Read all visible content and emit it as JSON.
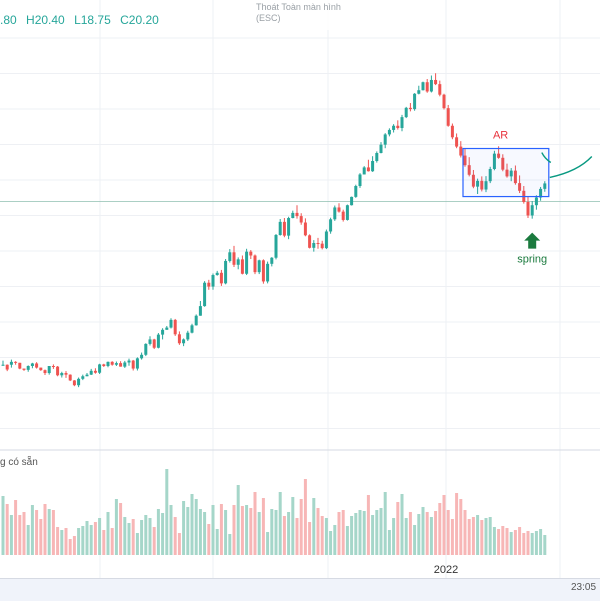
{
  "legend": {
    "ohlc_partial": ".80",
    "high": "H20.40",
    "low": "L18.75",
    "close": "C20.20"
  },
  "fullscreen_hint": {
    "line1": "Thoát Toàn màn hình",
    "line2": "(ESC)"
  },
  "volume_pane": {
    "title": "g có sẵn"
  },
  "time": "23:05",
  "colors": {
    "up": "#26a69a",
    "down": "#ef5350",
    "up_volume": "#a5d6c9",
    "down_volume": "#f7b6b6",
    "box": "#2962ff",
    "curve": "#089981",
    "arrow": "#1b7a3e",
    "ar_label": "#e8323c"
  },
  "chart_data": {
    "type": "candlestick",
    "price_pane_ylim": [
      9.5,
      22.3
    ],
    "x_tick_labels": [
      "2022"
    ],
    "grid": true,
    "annotations": {
      "ar_label": "AR",
      "spring_label": "spring",
      "range_box": {
        "from_index": 110,
        "to_index": 129,
        "top": 18.6,
        "bottom": 17.1
      },
      "reference_line": 16.95
    },
    "candles": [
      [
        11.84,
        11.98,
        11.82,
        11.85
      ],
      [
        11.85,
        11.86,
        11.65,
        11.7
      ],
      [
        11.85,
        12.01,
        11.76,
        11.94
      ],
      [
        11.94,
        11.96,
        11.85,
        11.91
      ],
      [
        11.91,
        11.91,
        11.71,
        11.73
      ],
      [
        11.73,
        11.73,
        11.66,
        11.69
      ],
      [
        11.69,
        11.83,
        11.63,
        11.81
      ],
      [
        11.81,
        11.91,
        11.74,
        11.89
      ],
      [
        11.89,
        11.93,
        11.73,
        11.76
      ],
      [
        11.76,
        11.76,
        11.66,
        11.68
      ],
      [
        11.68,
        11.7,
        11.53,
        11.59
      ],
      [
        11.59,
        11.81,
        11.54,
        11.81
      ],
      [
        11.81,
        11.86,
        11.72,
        11.79
      ],
      [
        11.79,
        11.81,
        11.49,
        11.52
      ],
      [
        11.52,
        11.63,
        11.45,
        11.59
      ],
      [
        11.59,
        11.65,
        11.44,
        11.54
      ],
      [
        11.54,
        11.55,
        11.34,
        11.36
      ],
      [
        11.36,
        11.37,
        11.18,
        11.21
      ],
      [
        11.21,
        11.45,
        11.15,
        11.41
      ],
      [
        11.41,
        11.54,
        11.37,
        11.49
      ],
      [
        11.49,
        11.59,
        11.49,
        11.54
      ],
      [
        11.54,
        11.72,
        11.53,
        11.66
      ],
      [
        11.66,
        11.74,
        11.57,
        11.6
      ],
      [
        11.6,
        11.88,
        11.56,
        11.86
      ],
      [
        11.86,
        11.88,
        11.78,
        11.81
      ],
      [
        11.81,
        11.95,
        11.77,
        11.94
      ],
      [
        11.94,
        11.96,
        11.82,
        11.85
      ],
      [
        11.85,
        11.95,
        11.81,
        11.9
      ],
      [
        11.9,
        11.96,
        11.79,
        11.79
      ],
      [
        11.79,
        11.97,
        11.75,
        11.92
      ],
      [
        11.92,
        12.04,
        11.82,
        11.98
      ],
      [
        11.98,
        12.0,
        11.67,
        11.73
      ],
      [
        11.73,
        12.08,
        11.67,
        12.05
      ],
      [
        12.05,
        12.23,
        12.01,
        12.16
      ],
      [
        12.16,
        12.52,
        12.12,
        12.5
      ],
      [
        12.5,
        12.74,
        12.45,
        12.64
      ],
      [
        12.64,
        12.66,
        12.34,
        12.38
      ],
      [
        12.38,
        12.84,
        12.36,
        12.79
      ],
      [
        12.79,
        12.99,
        12.64,
        12.94
      ],
      [
        12.94,
        13.06,
        12.94,
        13.01
      ],
      [
        13.01,
        13.3,
        12.98,
        13.25
      ],
      [
        13.25,
        13.28,
        12.75,
        12.8
      ],
      [
        12.8,
        12.89,
        12.47,
        12.52
      ],
      [
        12.52,
        12.67,
        12.43,
        12.64
      ],
      [
        12.64,
        12.91,
        12.59,
        12.85
      ],
      [
        12.85,
        13.13,
        12.83,
        13.08
      ],
      [
        13.08,
        13.42,
        13.07,
        13.38
      ],
      [
        13.38,
        13.84,
        13.38,
        13.68
      ],
      [
        13.68,
        14.46,
        13.66,
        14.41
      ],
      [
        14.41,
        14.5,
        14.19,
        14.29
      ],
      [
        14.29,
        14.7,
        14.19,
        14.65
      ],
      [
        14.65,
        14.78,
        14.63,
        14.72
      ],
      [
        14.72,
        14.81,
        14.31,
        14.39
      ],
      [
        14.39,
        15.15,
        14.36,
        15.09
      ],
      [
        15.09,
        15.46,
        15.04,
        15.36
      ],
      [
        15.36,
        15.56,
        14.9,
        14.97
      ],
      [
        14.97,
        15.2,
        14.83,
        15.14
      ],
      [
        15.14,
        15.26,
        14.67,
        14.69
      ],
      [
        14.69,
        15.47,
        14.65,
        15.38
      ],
      [
        15.38,
        15.43,
        15.15,
        15.26
      ],
      [
        15.26,
        15.29,
        14.68,
        14.74
      ],
      [
        14.74,
        15.13,
        14.68,
        15.11
      ],
      [
        15.11,
        15.14,
        14.38,
        14.45
      ],
      [
        14.45,
        15.07,
        14.39,
        15.0
      ],
      [
        15.0,
        15.21,
        14.92,
        15.19
      ],
      [
        15.19,
        15.93,
        15.14,
        15.9
      ],
      [
        15.9,
        16.4,
        15.88,
        16.31
      ],
      [
        16.31,
        16.43,
        15.83,
        15.88
      ],
      [
        15.88,
        16.47,
        15.77,
        16.43
      ],
      [
        16.43,
        16.66,
        16.42,
        16.59
      ],
      [
        16.59,
        16.83,
        16.41,
        16.49
      ],
      [
        16.49,
        16.58,
        16.22,
        16.29
      ],
      [
        16.29,
        16.42,
        15.86,
        15.89
      ],
      [
        15.89,
        15.92,
        15.48,
        15.5
      ],
      [
        15.5,
        15.74,
        15.38,
        15.65
      ],
      [
        15.65,
        15.81,
        15.47,
        15.63
      ],
      [
        15.63,
        15.72,
        15.45,
        15.49
      ],
      [
        15.49,
        16.07,
        15.46,
        16.01
      ],
      [
        16.01,
        16.44,
        15.94,
        16.39
      ],
      [
        16.39,
        16.82,
        16.34,
        16.76
      ],
      [
        16.76,
        16.89,
        16.6,
        16.63
      ],
      [
        16.63,
        16.69,
        16.32,
        16.37
      ],
      [
        16.37,
        16.85,
        16.35,
        16.83
      ],
      [
        16.83,
        17.1,
        16.82,
        17.09
      ],
      [
        17.09,
        17.47,
        17.06,
        17.43
      ],
      [
        17.43,
        17.83,
        17.37,
        17.79
      ],
      [
        17.79,
        18.05,
        17.79,
        18.01
      ],
      [
        18.01,
        18.25,
        17.88,
        17.89
      ],
      [
        17.89,
        18.36,
        17.87,
        18.21
      ],
      [
        18.21,
        18.51,
        18.16,
        18.46
      ],
      [
        18.46,
        18.8,
        18.45,
        18.72
      ],
      [
        18.72,
        19.08,
        18.61,
        19.04
      ],
      [
        19.04,
        19.23,
        18.98,
        19.18
      ],
      [
        19.18,
        19.36,
        19.1,
        19.31
      ],
      [
        19.31,
        19.48,
        19.19,
        19.24
      ],
      [
        19.24,
        19.65,
        19.14,
        19.58
      ],
      [
        19.58,
        19.9,
        19.55,
        19.87
      ],
      [
        19.87,
        20.02,
        19.76,
        19.83
      ],
      [
        19.83,
        20.33,
        19.78,
        20.31
      ],
      [
        20.31,
        20.56,
        20.29,
        20.42
      ],
      [
        20.42,
        20.69,
        20.41,
        20.67
      ],
      [
        20.67,
        20.77,
        20.34,
        20.38
      ],
      [
        20.38,
        20.88,
        20.35,
        20.74
      ],
      [
        20.74,
        20.95,
        20.58,
        20.61
      ],
      [
        20.61,
        20.72,
        20.23,
        20.28
      ],
      [
        20.28,
        20.31,
        19.82,
        19.86
      ],
      [
        19.86,
        19.96,
        19.28,
        19.31
      ],
      [
        19.31,
        19.38,
        18.89,
        18.95
      ],
      [
        18.95,
        19.07,
        18.61,
        18.66
      ],
      [
        18.66,
        18.83,
        18.32,
        18.38
      ],
      [
        18.38,
        18.59,
        18.03,
        18.08
      ],
      [
        18.08,
        18.33,
        17.73,
        17.78
      ],
      [
        17.78,
        17.93,
        17.36,
        17.41
      ],
      [
        17.41,
        17.66,
        17.18,
        17.59
      ],
      [
        17.59,
        17.73,
        17.26,
        17.32
      ],
      [
        17.32,
        17.74,
        17.24,
        17.58
      ],
      [
        17.58,
        18.03,
        17.52,
        17.96
      ],
      [
        17.96,
        18.53,
        17.92,
        18.44
      ],
      [
        18.44,
        18.67,
        18.28,
        18.31
      ],
      [
        18.31,
        18.42,
        17.89,
        17.94
      ],
      [
        17.94,
        18.13,
        17.69,
        17.73
      ],
      [
        17.73,
        17.99,
        17.58,
        17.91
      ],
      [
        17.91,
        18.07,
        17.47,
        17.52
      ],
      [
        17.52,
        17.76,
        17.21,
        17.28
      ],
      [
        17.28,
        17.43,
        16.88,
        16.93
      ],
      [
        16.93,
        17.1,
        16.43,
        16.51
      ],
      [
        16.51,
        16.96,
        16.41,
        16.83
      ],
      [
        16.83,
        17.14,
        16.69,
        17.07
      ],
      [
        17.07,
        17.4,
        16.97,
        17.34
      ],
      [
        17.34,
        17.58,
        17.25,
        17.51
      ]
    ],
    "volumes": [
      0.59,
      0.51,
      0.4,
      0.55,
      0.4,
      0.43,
      0.3,
      0.5,
      0.45,
      0.36,
      0.51,
      0.46,
      0.45,
      0.28,
      0.25,
      0.27,
      0.16,
      0.19,
      0.27,
      0.29,
      0.34,
      0.3,
      0.33,
      0.37,
      0.25,
      0.43,
      0.27,
      0.56,
      0.52,
      0.38,
      0.32,
      0.36,
      0.22,
      0.35,
      0.4,
      0.37,
      0.28,
      0.46,
      0.42,
      0.86,
      0.5,
      0.38,
      0.22,
      0.54,
      0.48,
      0.61,
      0.56,
      0.46,
      0.43,
      0.31,
      0.5,
      0.26,
      0.51,
      0.45,
      0.21,
      0.5,
      0.7,
      0.49,
      0.5,
      0.47,
      0.63,
      0.43,
      0.57,
      0.23,
      0.46,
      0.45,
      0.63,
      0.39,
      0.43,
      0.58,
      0.37,
      0.56,
      0.76,
      0.33,
      0.57,
      0.47,
      0.39,
      0.37,
      0.24,
      0.3,
      0.43,
      0.45,
      0.29,
      0.39,
      0.42,
      0.45,
      0.44,
      0.6,
      0.4,
      0.45,
      0.47,
      0.63,
      0.25,
      0.37,
      0.53,
      0.61,
      0.37,
      0.43,
      0.3,
      0.41,
      0.48,
      0.43,
      0.38,
      0.44,
      0.52,
      0.6,
      0.45,
      0.36,
      0.62,
      0.56,
      0.45,
      0.36,
      0.38,
      0.4,
      0.35,
      0.37,
      0.38,
      0.28,
      0.26,
      0.29,
      0.27,
      0.23,
      0.25,
      0.28,
      0.22,
      0.24,
      0.22,
      0.24,
      0.26,
      0.2
    ]
  }
}
